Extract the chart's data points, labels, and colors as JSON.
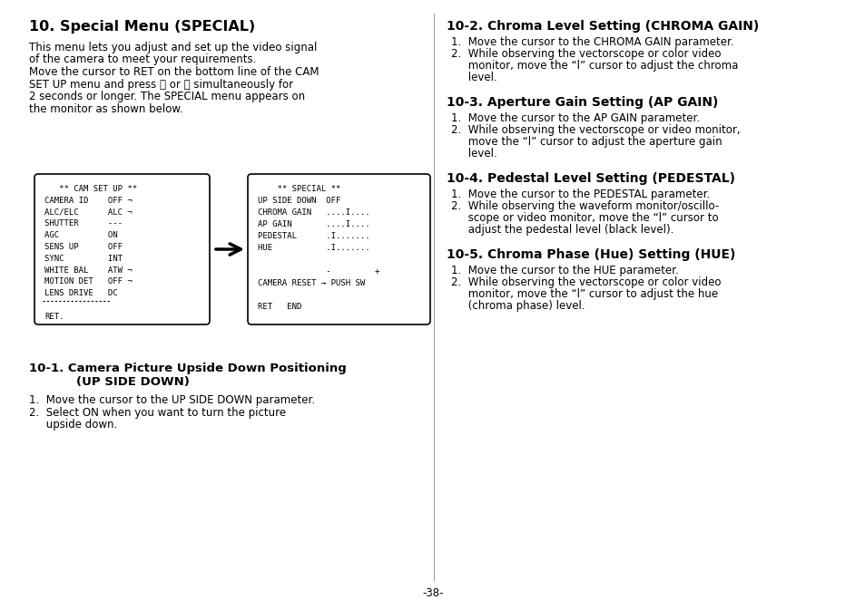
{
  "bg_color": "#ffffff",
  "page_number": "-38-",
  "left_column": {
    "heading": "10. Special Menu (SPECIAL)",
    "intro": [
      "This menu lets you adjust and set up the video signal",
      "of the camera to meet your requirements.",
      "Move the cursor to RET on the bottom line of the CAM",
      "SET UP menu and press Ⓞ or Ⓡ simultaneously for",
      "2 seconds or longer. The SPECIAL menu appears on",
      "the monitor as shown below."
    ],
    "cam_set_up_box": [
      "   ** CAM SET UP **",
      "CAMERA ID    OFF ¬",
      "ALC/ELC      ALC ¬",
      "SHUTTER      ---",
      "AGC          ON",
      "SENS UP      OFF",
      "SYNC         INT",
      "WHITE BAL    ATW ¬",
      "MOTION DET   OFF ¬",
      "LENS DRIVE   DC",
      "",
      "RET."
    ],
    "special_box": [
      "    ** SPECIAL **",
      "UP SIDE DOWN  OFF",
      "CHROMA GAIN   ....I....",
      "AP GAIN       ....I....",
      "PEDESTAL      .I.......",
      "HUE           .I.......",
      "",
      "              -         +",
      "CAMERA RESET → PUSH SW",
      "",
      "RET   END"
    ],
    "subsection_heading": "10-1. Camera Picture Upside Down Positioning",
    "subsection_heading2": "       (UP SIDE DOWN)",
    "subsection_items": [
      "1.  Move the cursor to the UP SIDE DOWN parameter.",
      "2.  Select ON when you want to turn the picture",
      "     upside down."
    ]
  },
  "right_column": {
    "sections": [
      {
        "heading": "10-2. Chroma Level Setting (CHROMA GAIN)",
        "items": [
          "1.  Move the cursor to the CHROMA GAIN parameter.",
          "2.  While observing the vectorscope or color video",
          "     monitor, move the “l” cursor to adjust the chroma",
          "     level."
        ]
      },
      {
        "heading": "10-3. Aperture Gain Setting (AP GAIN)",
        "items": [
          "1.  Move the cursor to the AP GAIN parameter.",
          "2.  While observing the vectorscope or video monitor,",
          "     move the “l” cursor to adjust the aperture gain",
          "     level."
        ]
      },
      {
        "heading": "10-4. Pedestal Level Setting (PEDESTAL)",
        "items": [
          "1.  Move the cursor to the PEDESTAL parameter.",
          "2.  While observing the waveform monitor/oscillo-",
          "     scope or video monitor, move the “l” cursor to",
          "     adjust the pedestal level (black level)."
        ]
      },
      {
        "heading": "10-5. Chroma Phase (Hue) Setting (HUE)",
        "items": [
          "1.  Move the cursor to the HUE parameter.",
          "2.  While observing the vectorscope or color video",
          "     monitor, move the “l” cursor to adjust the hue",
          "     (chroma phase) level."
        ]
      }
    ]
  }
}
